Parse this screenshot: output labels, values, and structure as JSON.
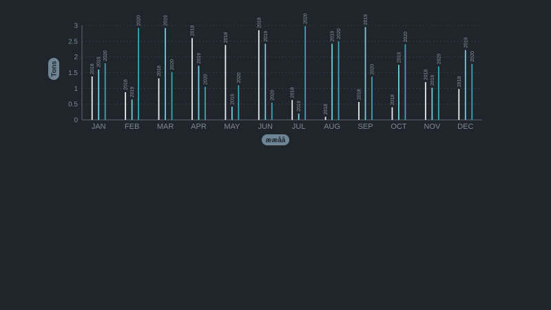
{
  "chart_data": {
    "type": "bar",
    "ylabel": "Tons",
    "xlabel": "ææåå",
    "ylim": [
      0,
      3
    ],
    "yticks": [
      "0",
      "0.5",
      "1",
      "1.5",
      "2",
      "2.5",
      "3"
    ],
    "grid": "horizontal-dashed",
    "legend": "none",
    "categories": [
      "JAN",
      "FEB",
      "MAR",
      "APR",
      "MAY",
      "JUN",
      "JUL",
      "AUG",
      "SEP",
      "OCT",
      "NOV",
      "DEC"
    ],
    "series": [
      {
        "name": "2018",
        "color": "#e8eef2",
        "values": [
          1.38,
          0.88,
          1.32,
          2.6,
          2.38,
          2.85,
          0.63,
          0.1,
          0.57,
          0.4,
          1.2,
          0.98
        ]
      },
      {
        "name": "2019",
        "color": "#6fd0e0",
        "values": [
          1.6,
          0.65,
          2.92,
          1.72,
          0.42,
          2.42,
          0.2,
          2.42,
          2.95,
          1.75,
          1.02,
          2.22
        ]
      },
      {
        "name": "2020",
        "color": "#3aa6b9",
        "values": [
          1.8,
          2.92,
          1.52,
          1.05,
          1.1,
          0.55,
          2.98,
          2.5,
          1.37,
          2.4,
          1.7,
          1.78
        ]
      }
    ]
  }
}
